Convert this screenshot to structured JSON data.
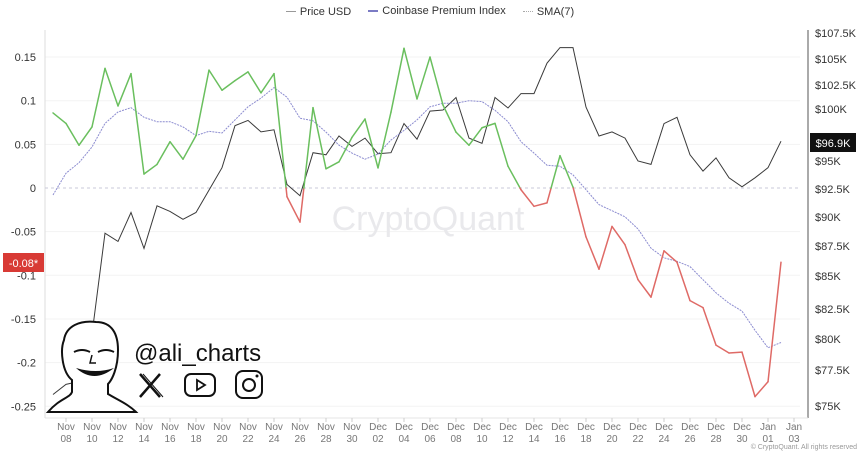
{
  "chart_data": {
    "type": "line",
    "legend": {
      "placement": "top",
      "entries": [
        "Price USD",
        "Coinbase Premium Index",
        "SMA(7)"
      ]
    },
    "x": [
      "Nov 07",
      "Nov 08",
      "Nov 09",
      "Nov 10",
      "Nov 11",
      "Nov 12",
      "Nov 13",
      "Nov 14",
      "Nov 15",
      "Nov 16",
      "Nov 17",
      "Nov 18",
      "Nov 19",
      "Nov 20",
      "Nov 21",
      "Nov 22",
      "Nov 23",
      "Nov 24",
      "Nov 25",
      "Nov 26",
      "Nov 27",
      "Nov 28",
      "Nov 29",
      "Nov 30",
      "Dec 01",
      "Dec 02",
      "Dec 03",
      "Dec 04",
      "Dec 05",
      "Dec 06",
      "Dec 07",
      "Dec 08",
      "Dec 09",
      "Dec 10",
      "Dec 11",
      "Dec 12",
      "Dec 13",
      "Dec 14",
      "Dec 15",
      "Dec 16",
      "Dec 17",
      "Dec 18",
      "Dec 19",
      "Dec 20",
      "Dec 21",
      "Dec 22",
      "Dec 23",
      "Dec 24",
      "Dec 25",
      "Dec 26",
      "Dec 27",
      "Dec 28",
      "Dec 29",
      "Dec 30",
      "Dec 31",
      "Jan 01",
      "Jan 02"
    ],
    "series": [
      {
        "name": "Price USD",
        "axis": "right",
        "unit": "K USD",
        "color": "#3a3a3a",
        "values": [
          75.8,
          76.5,
          76.7,
          80.4,
          88.6,
          87.9,
          90.4,
          87.3,
          91.0,
          90.5,
          89.8,
          90.4,
          92.4,
          94.4,
          98.4,
          98.9,
          97.8,
          98.0,
          92.9,
          91.9,
          95.8,
          95.6,
          97.4,
          96.4,
          97.2,
          95.7,
          95.8,
          98.6,
          97.1,
          99.8,
          99.9,
          101.2,
          97.2,
          96.7,
          101.2,
          100.1,
          101.6,
          101.6,
          104.6,
          106.1,
          106.1,
          100.2,
          97.4,
          97.8,
          97.2,
          95.0,
          94.7,
          98.6,
          99.2,
          95.6,
          94.1,
          95.3,
          93.5,
          92.7,
          93.5,
          94.4,
          96.9
        ]
      },
      {
        "name": "Coinbase Premium Index",
        "axis": "left",
        "color_positive": "#6abf5e",
        "color_negative": "#df6a66",
        "legend_color": "#7b7bc4",
        "values": [
          0.086,
          0.074,
          0.049,
          0.07,
          0.137,
          0.094,
          0.131,
          0.016,
          0.027,
          0.053,
          0.033,
          0.06,
          0.135,
          0.112,
          0.123,
          0.133,
          0.109,
          0.131,
          -0.01,
          -0.039,
          0.092,
          0.022,
          0.03,
          0.058,
          0.079,
          0.023,
          0.087,
          0.16,
          0.102,
          0.15,
          0.095,
          0.064,
          0.049,
          0.069,
          0.074,
          0.025,
          -0.002,
          -0.021,
          -0.017,
          0.037,
          0.001,
          -0.056,
          -0.093,
          -0.044,
          -0.065,
          -0.105,
          -0.125,
          -0.072,
          -0.085,
          -0.129,
          -0.137,
          -0.18,
          -0.189,
          -0.188,
          -0.239,
          -0.222,
          -0.085
        ]
      },
      {
        "name": "SMA(7)",
        "axis": "left",
        "color": "#8c8cd0",
        "dashed": true,
        "values": [
          -0.008,
          0.017,
          0.029,
          0.047,
          0.074,
          0.087,
          0.092,
          0.081,
          0.076,
          0.076,
          0.07,
          0.06,
          0.065,
          0.063,
          0.078,
          0.093,
          0.103,
          0.115,
          0.104,
          0.08,
          0.077,
          0.064,
          0.049,
          0.04,
          0.033,
          0.039,
          0.055,
          0.066,
          0.078,
          0.093,
          0.097,
          0.097,
          0.1,
          0.099,
          0.089,
          0.076,
          0.053,
          0.04,
          0.026,
          0.025,
          0.015,
          -0.002,
          -0.019,
          -0.026,
          -0.033,
          -0.047,
          -0.069,
          -0.08,
          -0.084,
          -0.09,
          -0.105,
          -0.12,
          -0.132,
          -0.141,
          -0.163,
          -0.183,
          -0.177
        ]
      }
    ],
    "left_axis": {
      "ticks": [
        "0.15",
        "0.1",
        "0.05",
        "0",
        "-0.05",
        "-0.1",
        "-0.15",
        "-0.2",
        "-0.25"
      ],
      "range": [
        -0.25,
        0.18
      ]
    },
    "right_axis": {
      "ticks": [
        "$107.5K",
        "$105K",
        "$102.5K",
        "$100K",
        "$95K",
        "$92.5K",
        "$90K",
        "$87.5K",
        "$85K",
        "$82.5K",
        "$80K",
        "$77.5K",
        "$75K"
      ],
      "range": [
        75,
        107.5
      ]
    },
    "x_ticks": [
      [
        "Nov",
        "08"
      ],
      [
        "Nov",
        "10"
      ],
      [
        "Nov",
        "12"
      ],
      [
        "Nov",
        "14"
      ],
      [
        "Nov",
        "16"
      ],
      [
        "Nov",
        "18"
      ],
      [
        "Nov",
        "20"
      ],
      [
        "Nov",
        "22"
      ],
      [
        "Nov",
        "24"
      ],
      [
        "Nov",
        "26"
      ],
      [
        "Nov",
        "28"
      ],
      [
        "Nov",
        "30"
      ],
      [
        "Dec",
        "02"
      ],
      [
        "Dec",
        "04"
      ],
      [
        "Dec",
        "06"
      ],
      [
        "Dec",
        "08"
      ],
      [
        "Dec",
        "10"
      ],
      [
        "Dec",
        "12"
      ],
      [
        "Dec",
        "14"
      ],
      [
        "Dec",
        "16"
      ],
      [
        "Dec",
        "18"
      ],
      [
        "Dec",
        "20"
      ],
      [
        "Dec",
        "22"
      ],
      [
        "Dec",
        "24"
      ],
      [
        "Dec",
        "26"
      ],
      [
        "Dec",
        "28"
      ],
      [
        "Dec",
        "30"
      ],
      [
        "Jan",
        "01"
      ],
      [
        "Jan",
        "03"
      ]
    ],
    "current_labels": {
      "premium": "-0.08*",
      "price": "$96.9K"
    },
    "grid": true
  },
  "watermark": "CryptoQuant",
  "copyright": "© CryptoQuant. All rights reserved",
  "branding": {
    "handle": "@ali_charts",
    "icons": [
      "x-icon",
      "youtube-icon",
      "instagram-icon"
    ]
  }
}
